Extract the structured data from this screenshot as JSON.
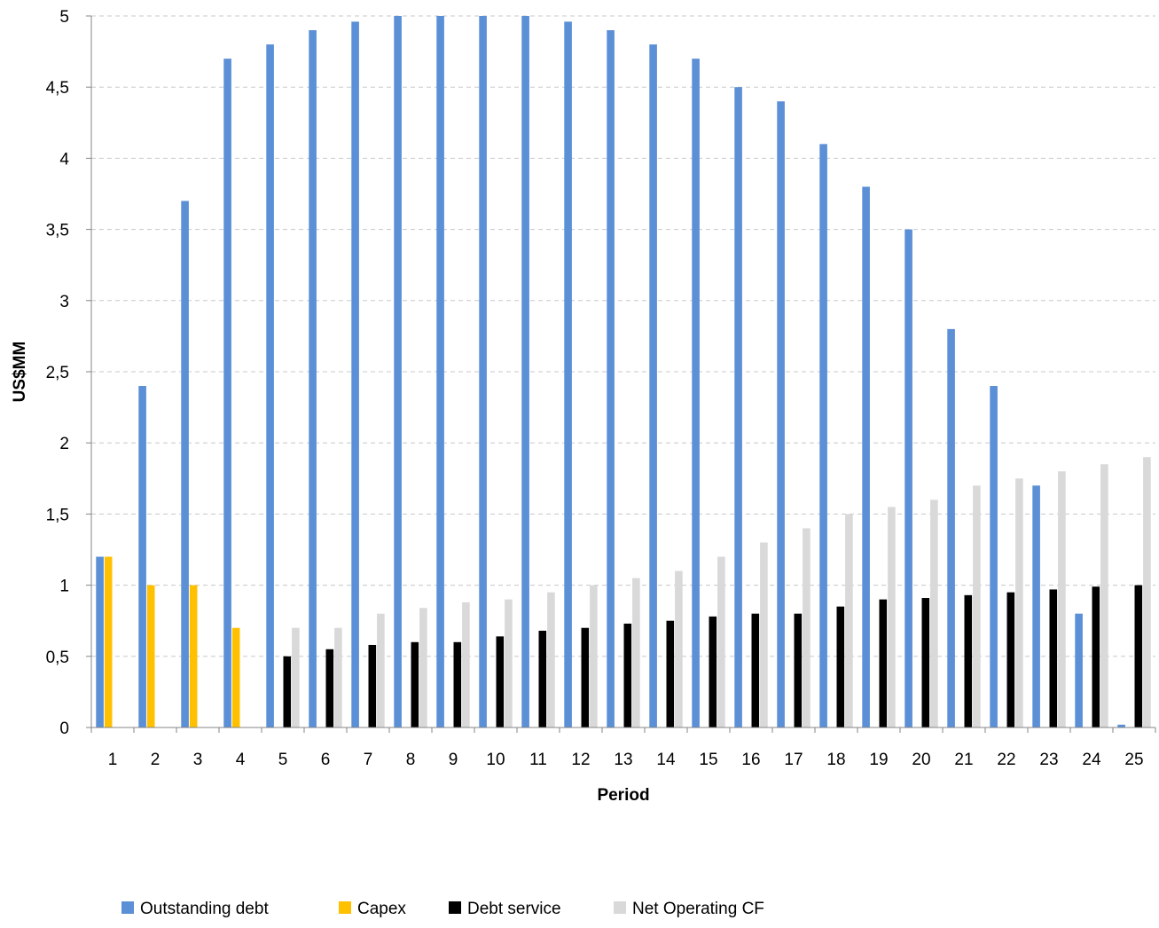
{
  "chart_data": {
    "type": "bar",
    "xlabel": "Period",
    "ylabel": "US$MM",
    "ylim": [
      0,
      5
    ],
    "yticks": [
      "0",
      "0,5",
      "1",
      "1,5",
      "2",
      "2,5",
      "3",
      "3,5",
      "4",
      "4,5",
      "5"
    ],
    "categories": [
      "1",
      "2",
      "3",
      "4",
      "5",
      "6",
      "7",
      "8",
      "9",
      "10",
      "11",
      "12",
      "13",
      "14",
      "15",
      "16",
      "17",
      "18",
      "19",
      "20",
      "21",
      "22",
      "23",
      "24",
      "25"
    ],
    "grid": "horizontal dashed",
    "legend_position": "bottom",
    "series": [
      {
        "name": "Outstanding debt",
        "color": "#5B8FD6",
        "values": [
          1.2,
          2.4,
          3.7,
          4.7,
          4.8,
          4.9,
          4.96,
          5.0,
          5.0,
          5.0,
          5.0,
          4.96,
          4.9,
          4.8,
          4.7,
          4.5,
          4.4,
          4.1,
          3.8,
          3.5,
          2.8,
          2.4,
          1.7,
          0.8,
          0.02
        ]
      },
      {
        "name": "Capex",
        "color": "#FFC000",
        "values": [
          1.2,
          1.0,
          1.0,
          0.7,
          0,
          0,
          0,
          0,
          0,
          0,
          0,
          0,
          0,
          0,
          0,
          0,
          0,
          0,
          0,
          0,
          0,
          0,
          0,
          0,
          0
        ]
      },
      {
        "name": "Debt service",
        "color": "#000000",
        "values": [
          0,
          0,
          0,
          0,
          0.5,
          0.55,
          0.58,
          0.6,
          0.6,
          0.64,
          0.68,
          0.7,
          0.73,
          0.75,
          0.78,
          0.8,
          0.8,
          0.85,
          0.9,
          0.91,
          0.93,
          0.95,
          0.97,
          0.99,
          1.0
        ]
      },
      {
        "name": "Net Operating CF",
        "color": "#D9D9D9",
        "values": [
          0,
          0,
          0,
          0,
          0.7,
          0.7,
          0.8,
          0.84,
          0.88,
          0.9,
          0.95,
          1.0,
          1.05,
          1.1,
          1.2,
          1.3,
          1.4,
          1.5,
          1.55,
          1.6,
          1.7,
          1.75,
          1.8,
          1.85,
          1.9
        ]
      }
    ]
  }
}
